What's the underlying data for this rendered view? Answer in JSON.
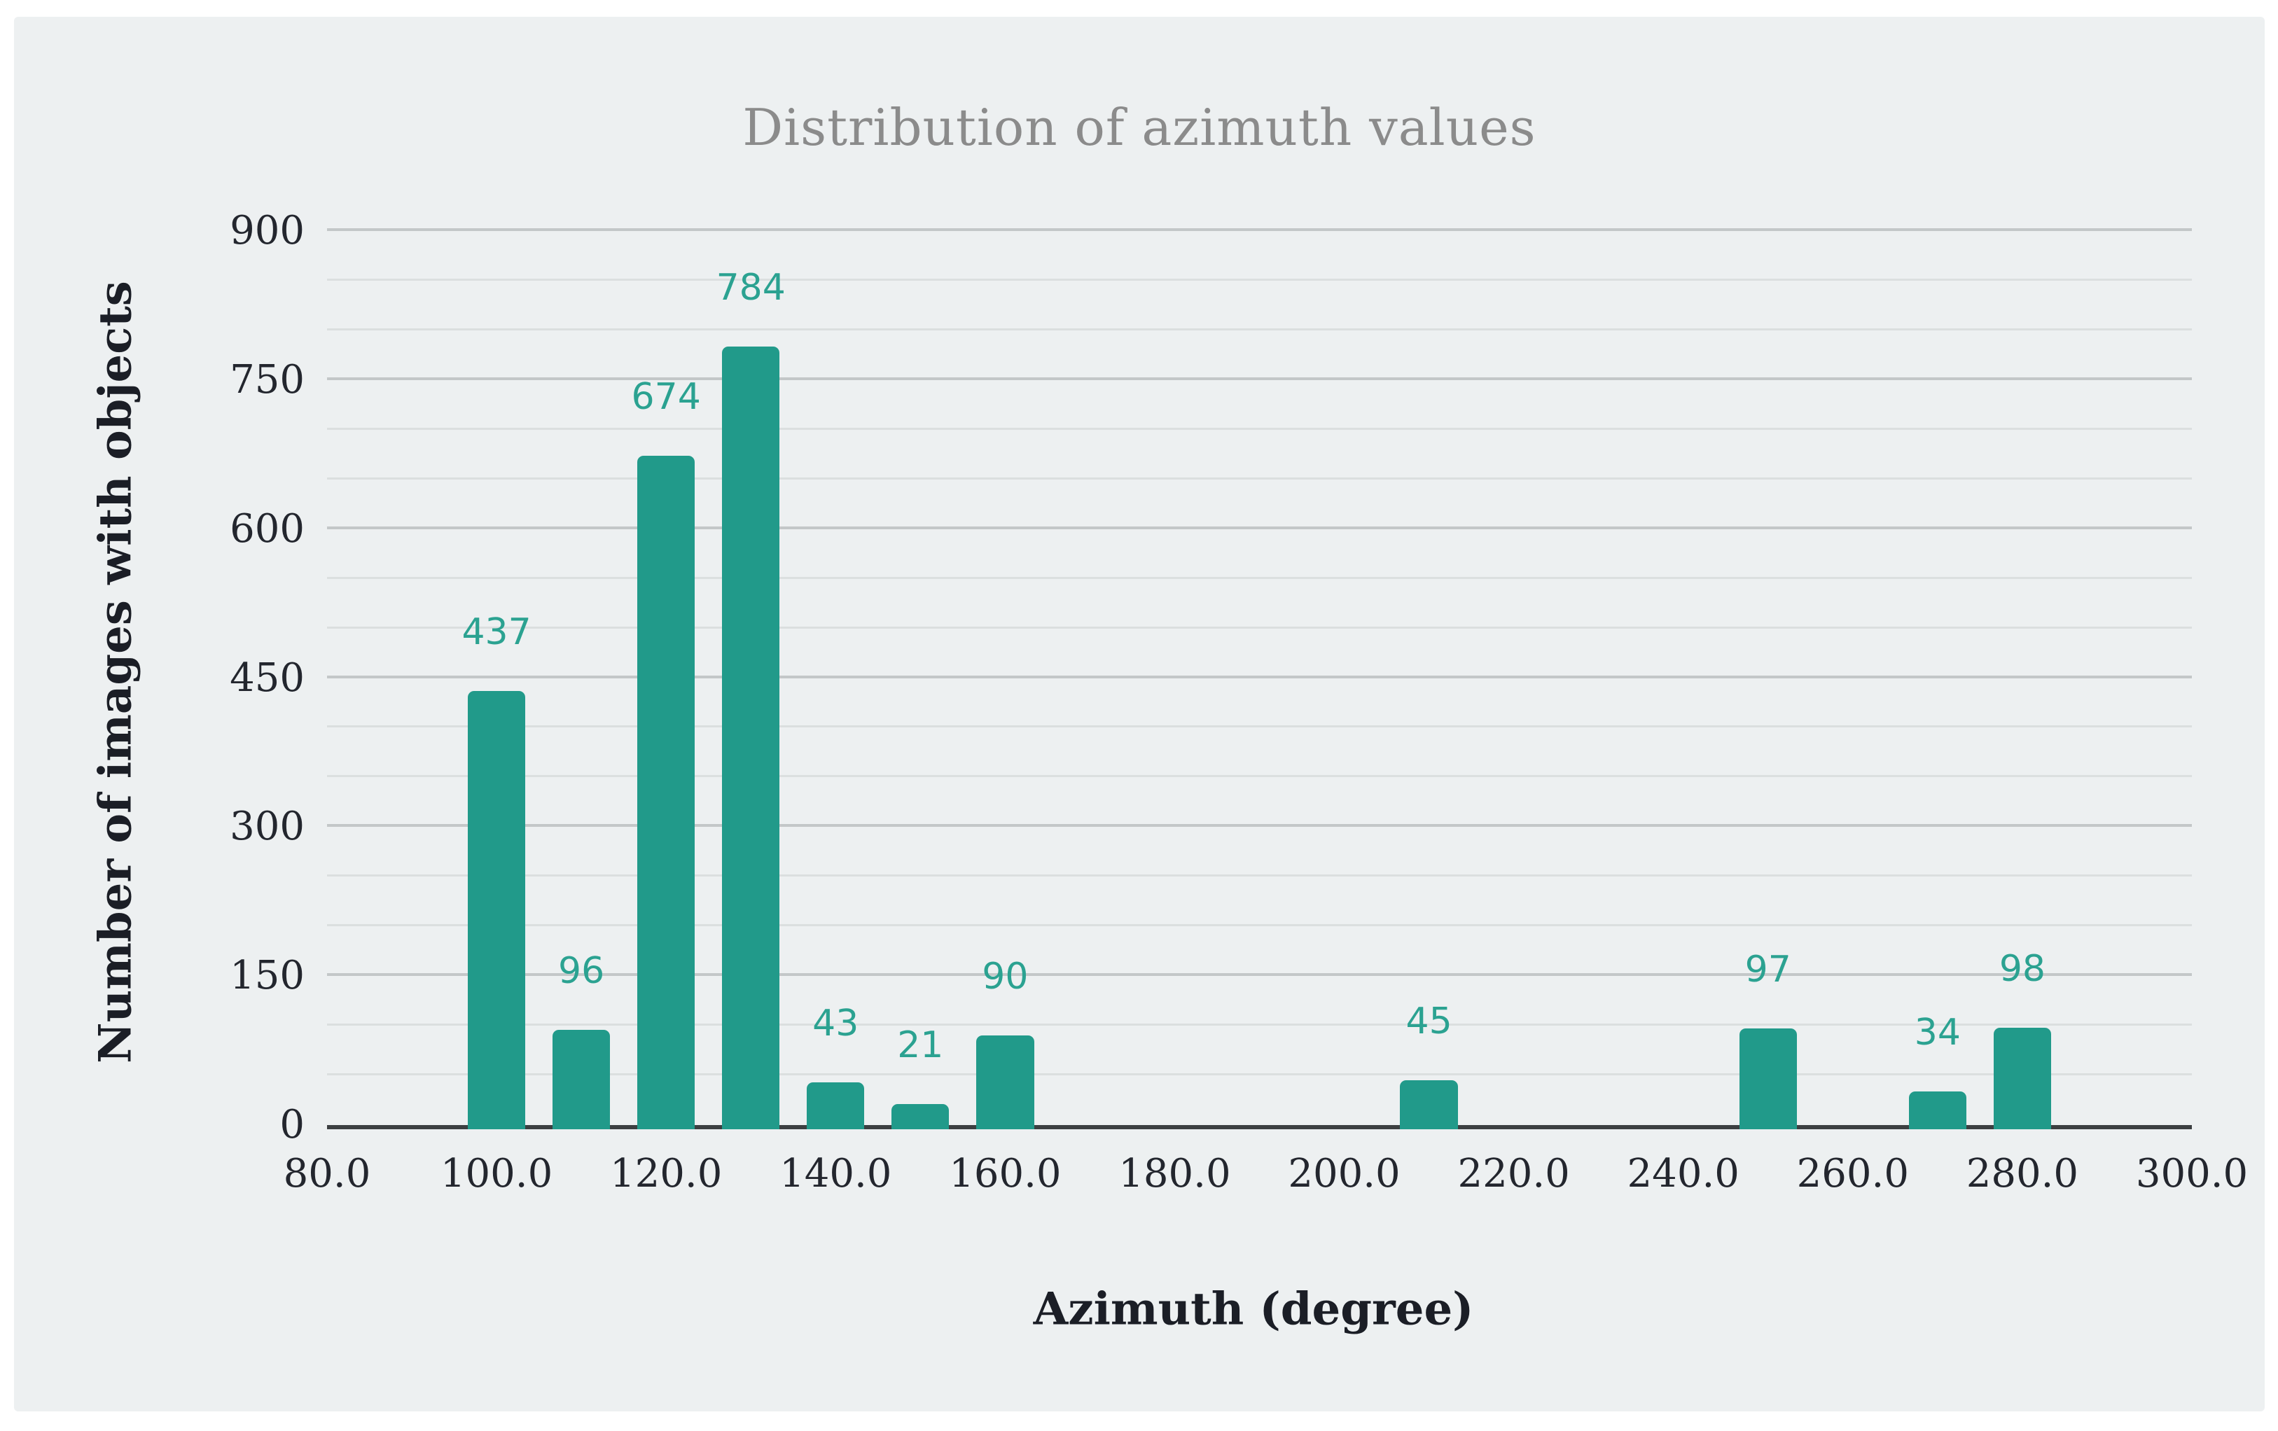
{
  "figure": {
    "background": "#ffffff",
    "panel_background": "#edf0f1"
  },
  "chart_data": {
    "type": "bar",
    "title": "Distribution of azimuth values",
    "xlabel": "Azimuth (degree)",
    "ylabel": "Number of images with objects",
    "x": [
      100,
      110,
      120,
      130,
      140,
      150,
      160,
      210,
      250,
      270,
      280
    ],
    "values": [
      437,
      96,
      674,
      784,
      43,
      21,
      90,
      45,
      97,
      34,
      98
    ],
    "bar_width_x": 6.8,
    "xlim": [
      80,
      300
    ],
    "ylim": [
      0,
      900
    ],
    "x_tick_values": [
      80,
      100,
      120,
      140,
      160,
      180,
      200,
      220,
      240,
      260,
      280,
      300
    ],
    "x_tick_labels": [
      "80.0",
      "100.0",
      "120.0",
      "140.0",
      "160.0",
      "180.0",
      "200.0",
      "220.0",
      "240.0",
      "260.0",
      "280.0",
      "300.0"
    ],
    "y_tick_values": [
      0,
      150,
      300,
      450,
      600,
      750,
      900
    ],
    "y_tick_labels": [
      "0",
      "150",
      "300",
      "450",
      "600",
      "750",
      "900"
    ],
    "y_minor_step": 50,
    "grid": "horizontal-only",
    "legend": "none",
    "colors": {
      "bar": "#219a8a",
      "value_label": "#2ba291",
      "title": "#8b8b8b",
      "tick_label": "#23262e",
      "axis_title": "#1b1e26",
      "grid_major": "#c3c7c8",
      "grid_minor": "#dbdfdf",
      "axis_line": "#3c3f41"
    }
  }
}
